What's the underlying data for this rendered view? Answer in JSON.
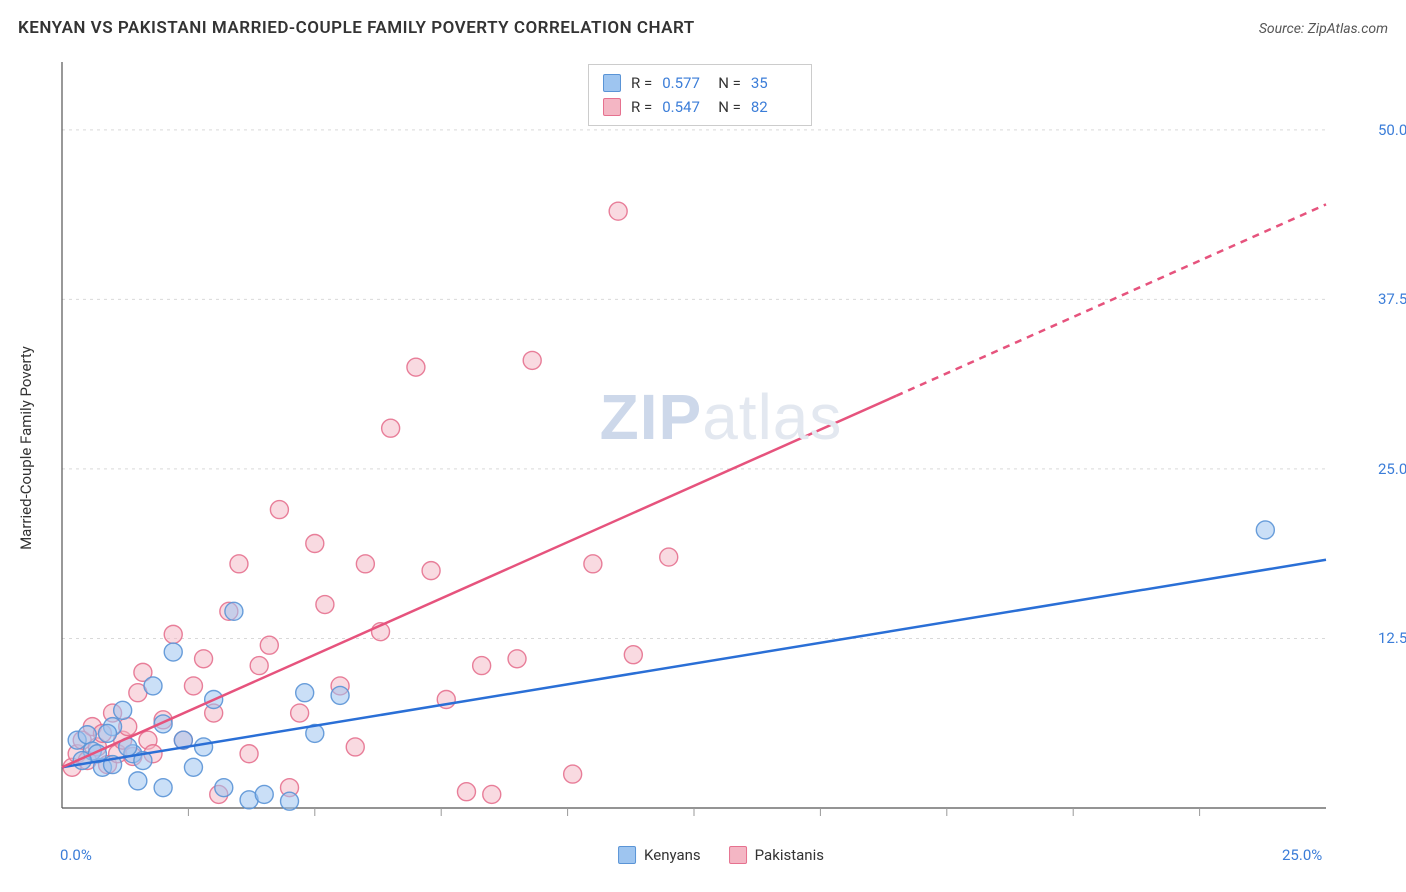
{
  "header": {
    "title": "KENYAN VS PAKISTANI MARRIED-COUPLE FAMILY POVERTY CORRELATION CHART",
    "source": "Source: ZipAtlas.com"
  },
  "chart": {
    "type": "scatter",
    "background_color": "#ffffff",
    "grid_color": "#d9d9d9",
    "axis_color": "#555555",
    "tick_color": "#999999",
    "y_axis_label": "Married-Couple Family Poverty",
    "label_fontsize": 15,
    "label_color": "#333333",
    "tick_label_color": "#3b7dd8",
    "tick_label_fontsize": 15,
    "xlim": [
      0,
      25
    ],
    "ylim": [
      0,
      55
    ],
    "x_ticks": [
      0,
      25
    ],
    "x_tick_labels": [
      "0.0%",
      "25.0%"
    ],
    "x_minor_ticks": [
      2.5,
      5,
      7.5,
      10,
      12.5,
      15,
      17.5,
      20,
      22.5
    ],
    "y_ticks": [
      12.5,
      25.0,
      37.5,
      50.0
    ],
    "y_tick_labels": [
      "12.5%",
      "25.0%",
      "37.5%",
      "50.0%"
    ],
    "series": {
      "kenyans": {
        "label": "Kenyans",
        "marker_fill": "#9ec5f0",
        "marker_stroke": "#5a94d6",
        "marker_opacity": 0.55,
        "marker_radius": 9,
        "line_color": "#2a6fd6",
        "line_width": 2.5,
        "trend": {
          "x1": 0,
          "y1": 3.0,
          "x2": 25,
          "y2": 18.3,
          "dashed_from_x": null
        },
        "R": "0.577",
        "N": "35",
        "points": [
          [
            0.3,
            5.0
          ],
          [
            0.5,
            5.4
          ],
          [
            0.6,
            4.2
          ],
          [
            0.8,
            3.0
          ],
          [
            1.0,
            6.0
          ],
          [
            1.2,
            7.2
          ],
          [
            1.4,
            4.0
          ],
          [
            1.6,
            3.5
          ],
          [
            1.8,
            9.0
          ],
          [
            2.0,
            6.2
          ],
          [
            2.2,
            11.5
          ],
          [
            2.4,
            5.0
          ],
          [
            2.6,
            3.0
          ],
          [
            2.8,
            4.5
          ],
          [
            3.0,
            8.0
          ],
          [
            3.4,
            14.5
          ],
          [
            3.7,
            0.6
          ],
          [
            4.0,
            1.0
          ],
          [
            4.5,
            0.5
          ],
          [
            4.8,
            8.5
          ],
          [
            5.0,
            5.5
          ],
          [
            3.2,
            1.5
          ],
          [
            2.0,
            1.5
          ],
          [
            1.5,
            2.0
          ],
          [
            1.0,
            3.2
          ],
          [
            0.7,
            4.0
          ],
          [
            0.4,
            3.5
          ],
          [
            0.9,
            5.5
          ],
          [
            1.3,
            4.5
          ],
          [
            5.5,
            8.3
          ],
          [
            23.8,
            20.5
          ]
        ]
      },
      "pakistanis": {
        "label": "Pakistanis",
        "marker_fill": "#f4b6c4",
        "marker_stroke": "#e6718f",
        "marker_opacity": 0.5,
        "marker_radius": 9,
        "line_color": "#e6537d",
        "line_width": 2.5,
        "trend": {
          "x1": 0,
          "y1": 3.0,
          "x2": 25,
          "y2": 44.5,
          "dashed_from_x": 16.5
        },
        "R": "0.547",
        "N": "82",
        "points": [
          [
            0.2,
            3.0
          ],
          [
            0.3,
            4.0
          ],
          [
            0.4,
            5.0
          ],
          [
            0.5,
            3.5
          ],
          [
            0.6,
            6.0
          ],
          [
            0.7,
            4.5
          ],
          [
            0.8,
            5.5
          ],
          [
            0.9,
            3.2
          ],
          [
            1.0,
            7.0
          ],
          [
            1.1,
            4.0
          ],
          [
            1.2,
            5.0
          ],
          [
            1.3,
            6.0
          ],
          [
            1.4,
            3.8
          ],
          [
            1.5,
            8.5
          ],
          [
            1.6,
            10.0
          ],
          [
            1.7,
            5.0
          ],
          [
            1.8,
            4.0
          ],
          [
            2.0,
            6.5
          ],
          [
            2.2,
            12.8
          ],
          [
            2.4,
            5.0
          ],
          [
            2.6,
            9.0
          ],
          [
            2.8,
            11.0
          ],
          [
            3.0,
            7.0
          ],
          [
            3.1,
            1.0
          ],
          [
            3.3,
            14.5
          ],
          [
            3.5,
            18.0
          ],
          [
            3.7,
            4.0
          ],
          [
            3.9,
            10.5
          ],
          [
            4.1,
            12.0
          ],
          [
            4.3,
            22.0
          ],
          [
            4.5,
            1.5
          ],
          [
            4.7,
            7.0
          ],
          [
            5.0,
            19.5
          ],
          [
            5.2,
            15.0
          ],
          [
            5.5,
            9.0
          ],
          [
            5.8,
            4.5
          ],
          [
            6.0,
            18.0
          ],
          [
            6.3,
            13.0
          ],
          [
            6.5,
            28.0
          ],
          [
            7.0,
            32.5
          ],
          [
            7.3,
            17.5
          ],
          [
            7.6,
            8.0
          ],
          [
            8.0,
            1.2
          ],
          [
            8.3,
            10.5
          ],
          [
            8.5,
            1.0
          ],
          [
            9.0,
            11.0
          ],
          [
            9.3,
            33.0
          ],
          [
            10.1,
            2.5
          ],
          [
            10.5,
            18.0
          ],
          [
            11.0,
            44.0
          ],
          [
            11.3,
            11.3
          ],
          [
            12.0,
            18.5
          ]
        ]
      }
    },
    "stats_box": {
      "border_color": "#cccccc",
      "rows": [
        {
          "swatch_fill": "#9ec5f0",
          "swatch_stroke": "#5a94d6",
          "R_label": "R =",
          "R_val": "0.577",
          "N_label": "N =",
          "N_val": "35"
        },
        {
          "swatch_fill": "#f4b6c4",
          "swatch_stroke": "#e6718f",
          "R_label": "R =",
          "R_val": "0.547",
          "N_label": "N =",
          "N_val": "82"
        }
      ]
    },
    "legend_bottom": [
      {
        "swatch_fill": "#9ec5f0",
        "swatch_stroke": "#5a94d6",
        "label": "Kenyans"
      },
      {
        "swatch_fill": "#f4b6c4",
        "swatch_stroke": "#e6718f",
        "label": "Pakistanis"
      }
    ],
    "watermark": {
      "bold": "ZIP",
      "rest": "atlas"
    }
  }
}
